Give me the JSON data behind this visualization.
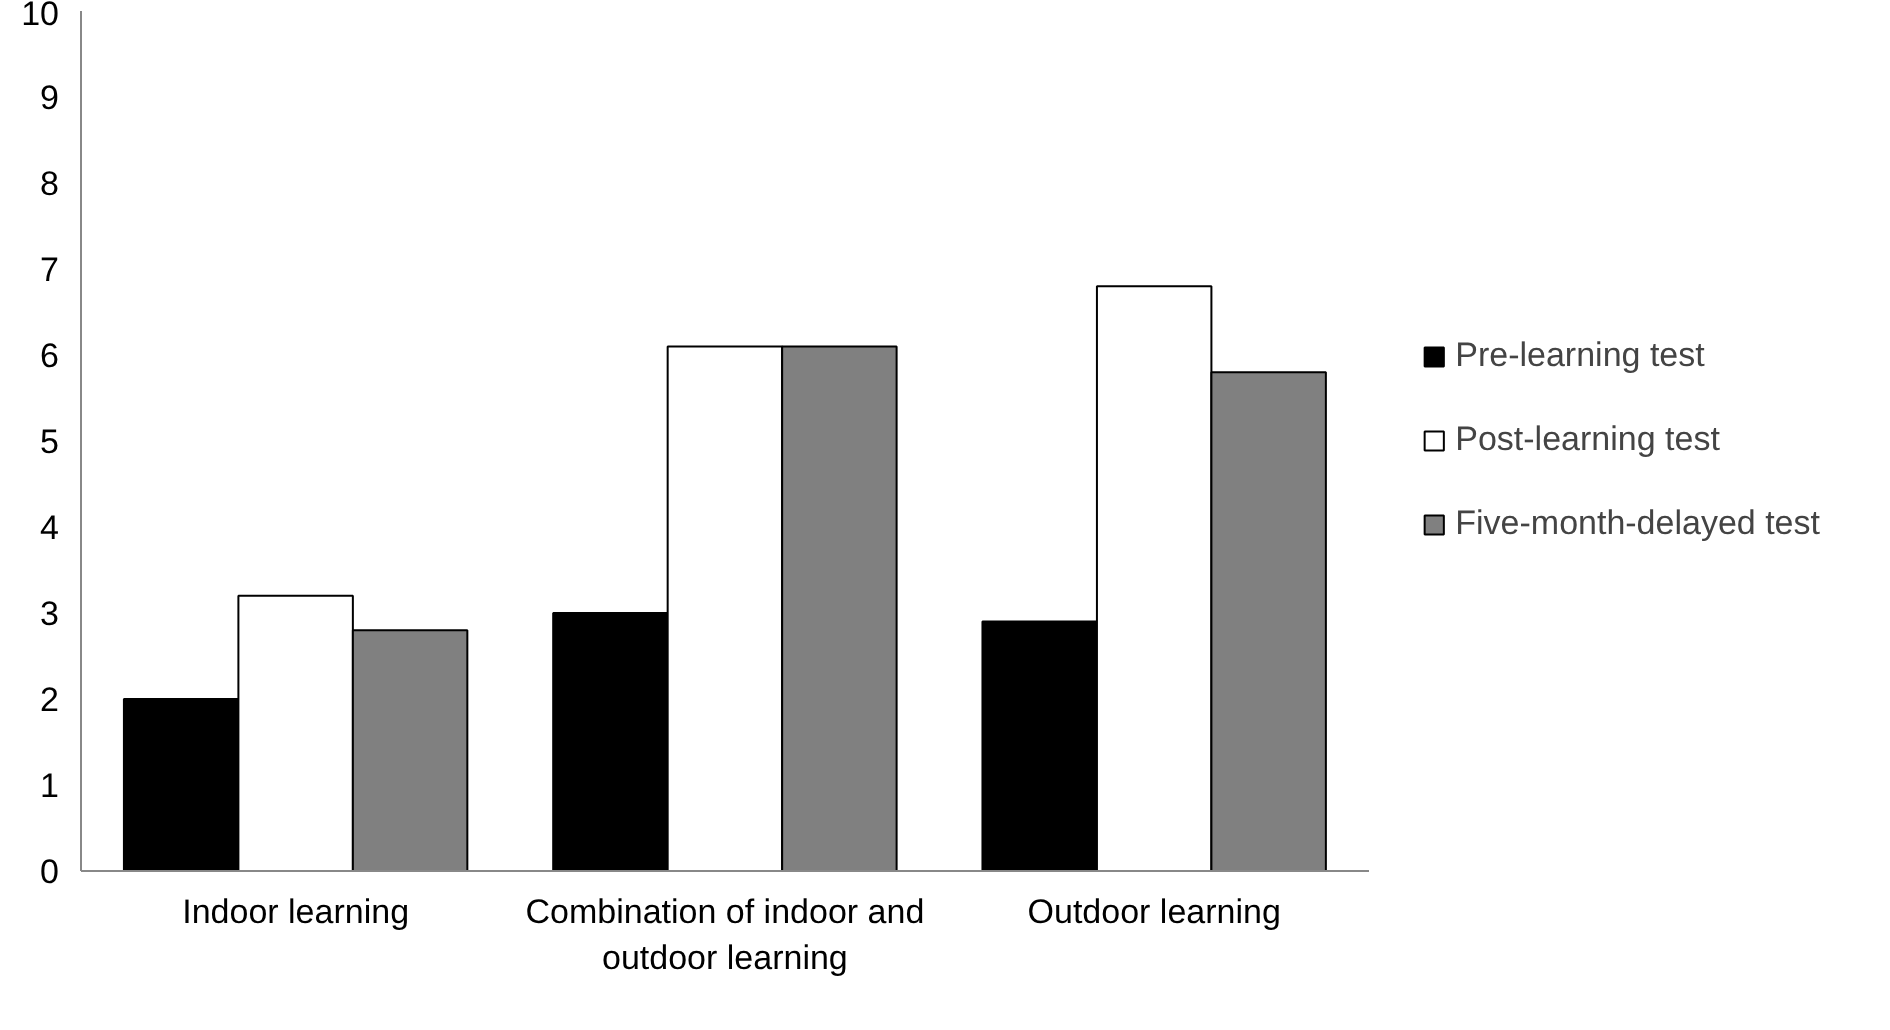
{
  "chart_data": {
    "type": "bar",
    "categories": [
      "Indoor learning",
      "Combination of indoor and outdoor learning",
      "Outdoor learning"
    ],
    "series": [
      {
        "name": "Pre-learning test",
        "color": "#000000",
        "values": [
          2.0,
          3.0,
          2.9
        ]
      },
      {
        "name": "Post-learning test",
        "color": "#ffffff",
        "values": [
          3.2,
          6.1,
          6.8
        ]
      },
      {
        "name": "Five-month-delayed test",
        "color": "#808080",
        "values": [
          2.8,
          6.1,
          5.8
        ]
      }
    ],
    "ylim": [
      0,
      10
    ],
    "yticks": [
      0,
      1,
      2,
      3,
      4,
      5,
      6,
      7,
      8,
      9,
      10
    ],
    "grid": false,
    "legend": "right"
  }
}
